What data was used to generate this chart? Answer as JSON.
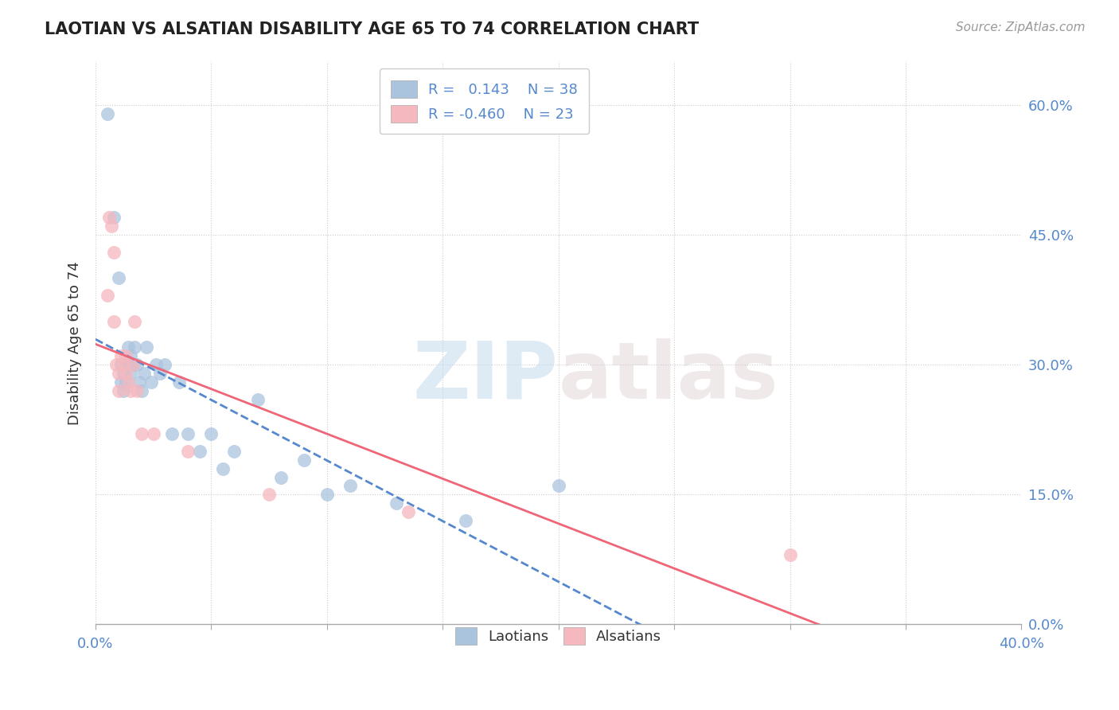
{
  "title": "LAOTIAN VS ALSATIAN DISABILITY AGE 65 TO 74 CORRELATION CHART",
  "source": "Source: ZipAtlas.com",
  "ylabel": "Disability Age 65 to 74",
  "xlim": [
    0.0,
    0.4
  ],
  "ylim": [
    0.0,
    0.65
  ],
  "xticks": [
    0.0,
    0.05,
    0.1,
    0.15,
    0.2,
    0.25,
    0.3,
    0.35,
    0.4
  ],
  "xticklabels_shown": {
    "0.0": "0.0%",
    "0.40": "40.0%"
  },
  "yticks": [
    0.0,
    0.15,
    0.3,
    0.45,
    0.6
  ],
  "yticklabels": [
    "0.0%",
    "15.0%",
    "30.0%",
    "45.0%",
    "60.0%"
  ],
  "laotian_color": "#aac4de",
  "alsatian_color": "#f5b8bf",
  "laotian_line_color": "#5588cc",
  "alsatian_line_color": "#ee6677",
  "R_laotian": 0.143,
  "N_laotian": 38,
  "R_alsatian": -0.46,
  "N_alsatian": 23,
  "watermark_zip": "ZIP",
  "watermark_atlas": "atlas",
  "legend_label_laotian": "Laotians",
  "legend_label_alsatian": "Alsatians",
  "tick_color": "#5588cc",
  "laotian_scatter_x": [
    0.005,
    0.008,
    0.01,
    0.011,
    0.011,
    0.012,
    0.012,
    0.013,
    0.013,
    0.014,
    0.015,
    0.015,
    0.016,
    0.017,
    0.018,
    0.019,
    0.02,
    0.021,
    0.022,
    0.024,
    0.026,
    0.028,
    0.03,
    0.033,
    0.036,
    0.04,
    0.045,
    0.05,
    0.055,
    0.06,
    0.07,
    0.08,
    0.09,
    0.1,
    0.11,
    0.13,
    0.16,
    0.2
  ],
  "laotian_scatter_y": [
    0.59,
    0.47,
    0.4,
    0.3,
    0.28,
    0.29,
    0.27,
    0.3,
    0.28,
    0.32,
    0.29,
    0.31,
    0.3,
    0.32,
    0.3,
    0.28,
    0.27,
    0.29,
    0.32,
    0.28,
    0.3,
    0.29,
    0.3,
    0.22,
    0.28,
    0.22,
    0.2,
    0.22,
    0.18,
    0.2,
    0.26,
    0.17,
    0.19,
    0.15,
    0.16,
    0.14,
    0.12,
    0.16
  ],
  "alsatian_scatter_x": [
    0.005,
    0.006,
    0.007,
    0.008,
    0.008,
    0.009,
    0.01,
    0.01,
    0.011,
    0.012,
    0.013,
    0.013,
    0.014,
    0.015,
    0.016,
    0.017,
    0.018,
    0.02,
    0.025,
    0.04,
    0.075,
    0.135,
    0.3
  ],
  "alsatian_scatter_y": [
    0.38,
    0.47,
    0.46,
    0.43,
    0.35,
    0.3,
    0.29,
    0.27,
    0.31,
    0.3,
    0.29,
    0.31,
    0.28,
    0.27,
    0.3,
    0.35,
    0.27,
    0.22,
    0.22,
    0.2,
    0.15,
    0.13,
    0.08
  ],
  "trendline_x_start": 0.0,
  "trendline_x_end": 0.4
}
